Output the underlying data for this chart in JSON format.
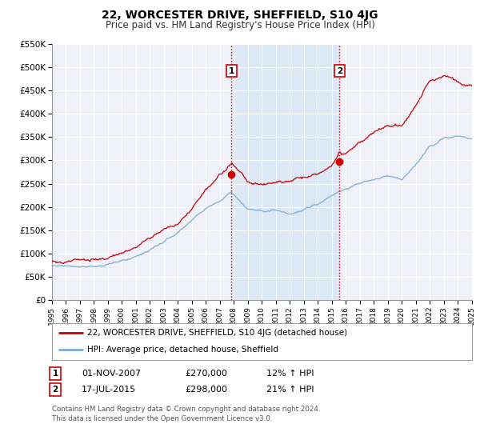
{
  "title": "22, WORCESTER DRIVE, SHEFFIELD, S10 4JG",
  "subtitle": "Price paid vs. HM Land Registry's House Price Index (HPI)",
  "ylim": [
    0,
    550000
  ],
  "xlim_start": 1995,
  "xlim_end": 2025,
  "yticks": [
    0,
    50000,
    100000,
    150000,
    200000,
    250000,
    300000,
    350000,
    400000,
    450000,
    500000,
    550000
  ],
  "ytick_labels": [
    "£0",
    "£50K",
    "£100K",
    "£150K",
    "£200K",
    "£250K",
    "£300K",
    "£350K",
    "£400K",
    "£450K",
    "£500K",
    "£550K"
  ],
  "xticks": [
    1995,
    1996,
    1997,
    1998,
    1999,
    2000,
    2001,
    2002,
    2003,
    2004,
    2005,
    2006,
    2007,
    2008,
    2009,
    2010,
    2011,
    2012,
    2013,
    2014,
    2015,
    2016,
    2017,
    2018,
    2019,
    2020,
    2021,
    2022,
    2023,
    2024,
    2025
  ],
  "line1_color": "#cc0000",
  "line2_color": "#7aafd4",
  "bg_color": "#ffffff",
  "plot_bg_color": "#f0f0f8",
  "grid_color": "#ffffff",
  "marker1_x": 2007.833,
  "marker1_y": 270000,
  "marker2_x": 2015.54,
  "marker2_y": 298000,
  "shade_color": "#dce8f5",
  "vline_color": "#cc0000",
  "legend_label1": "22, WORCESTER DRIVE, SHEFFIELD, S10 4JG (detached house)",
  "legend_label2": "HPI: Average price, detached house, Sheffield",
  "transaction1_label": "1",
  "transaction1_date": "01-NOV-2007",
  "transaction1_price": "£270,000",
  "transaction1_hpi": "12% ↑ HPI",
  "transaction2_label": "2",
  "transaction2_date": "17-JUL-2015",
  "transaction2_price": "£298,000",
  "transaction2_hpi": "21% ↑ HPI",
  "footer": "Contains HM Land Registry data © Crown copyright and database right 2024.\nThis data is licensed under the Open Government Licence v3.0.",
  "title_fontsize": 10,
  "subtitle_fontsize": 8.5
}
